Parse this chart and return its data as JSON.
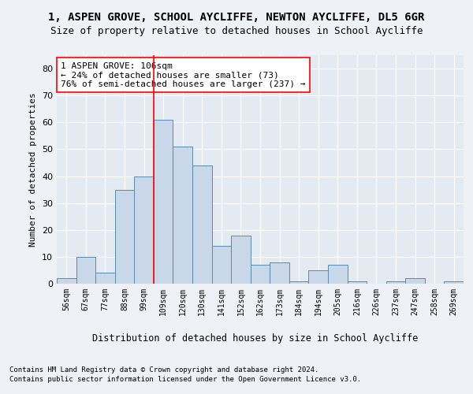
{
  "title1": "1, ASPEN GROVE, SCHOOL AYCLIFFE, NEWTON AYCLIFFE, DL5 6GR",
  "title2": "Size of property relative to detached houses in School Aycliffe",
  "xlabel": "Distribution of detached houses by size in School Aycliffe",
  "ylabel": "Number of detached properties",
  "categories": [
    "56sqm",
    "67sqm",
    "77sqm",
    "88sqm",
    "99sqm",
    "109sqm",
    "120sqm",
    "130sqm",
    "141sqm",
    "152sqm",
    "162sqm",
    "173sqm",
    "184sqm",
    "194sqm",
    "205sqm",
    "216sqm",
    "226sqm",
    "237sqm",
    "247sqm",
    "258sqm",
    "269sqm"
  ],
  "values": [
    2,
    10,
    4,
    35,
    40,
    61,
    51,
    44,
    14,
    18,
    7,
    8,
    1,
    5,
    7,
    1,
    0,
    1,
    2,
    0,
    1
  ],
  "bar_color": "#c8d8e8",
  "bar_edge_color": "#5a8ab0",
  "reference_line_x": 4.5,
  "reference_label": "1 ASPEN GROVE: 106sqm",
  "pct_smaller": "← 24% of detached houses are smaller (73)",
  "pct_larger": "76% of semi-detached houses are larger (237) →",
  "ylim": [
    0,
    85
  ],
  "yticks": [
    0,
    10,
    20,
    30,
    40,
    50,
    60,
    70,
    80
  ],
  "bg_color": "#eef2f7",
  "plot_bg_color": "#e4eaf2",
  "footer1": "Contains HM Land Registry data © Crown copyright and database right 2024.",
  "footer2": "Contains public sector information licensed under the Open Government Licence v3.0.",
  "title_fontsize": 10,
  "subtitle_fontsize": 9,
  "annotation_fontsize": 8,
  "ylabel_fontsize": 8,
  "xlabel_fontsize": 8.5,
  "footer_fontsize": 6.5,
  "xtick_fontsize": 7,
  "ytick_fontsize": 8
}
